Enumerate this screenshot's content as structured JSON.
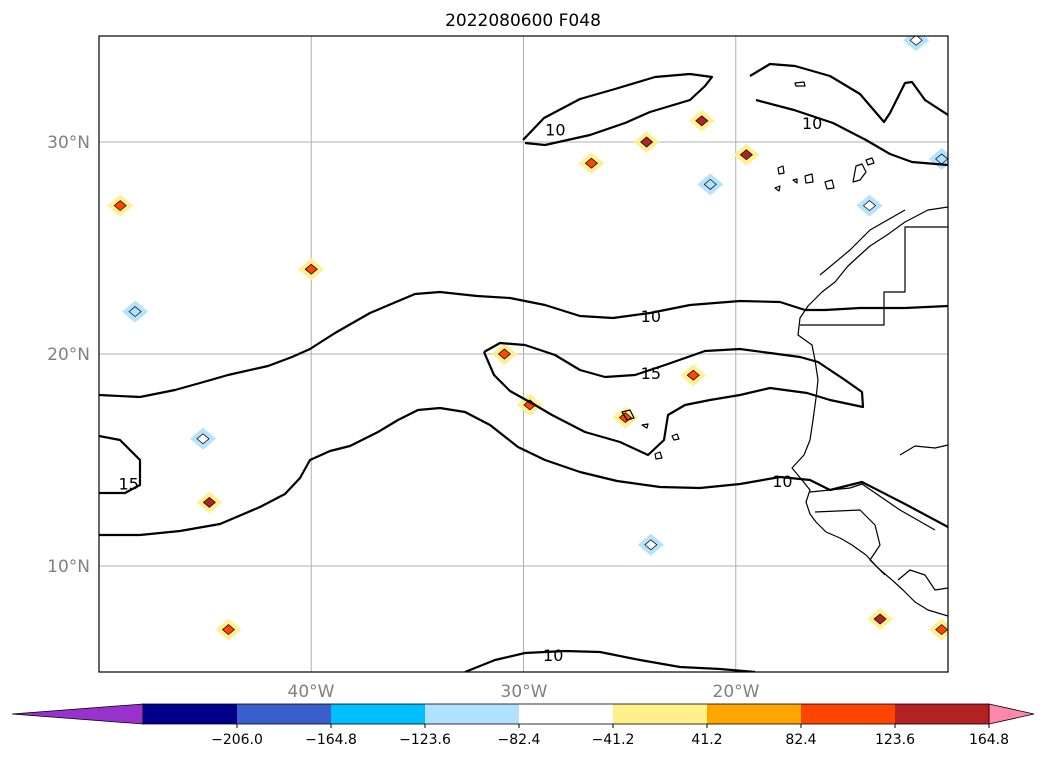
{
  "chart_data": {
    "type": "heatmap",
    "title": "2022080600 F048",
    "map": {
      "lon_range": [
        -50,
        -10
      ],
      "lat_range": [
        5,
        35
      ],
      "lon_ticks": [
        -40,
        -30,
        -20
      ],
      "lat_ticks": [
        10,
        20,
        30
      ],
      "lon_tick_labels": [
        "40°W",
        "30°W",
        "20°W"
      ],
      "lat_tick_labels": [
        "10°N",
        "20°N",
        "30°N"
      ],
      "grid": true,
      "coastlines": true,
      "country_borders": true
    },
    "colorbar": {
      "orientation": "horizontal",
      "extend": "both",
      "boundaries": [
        -247.2,
        -206.0,
        -164.8,
        -123.6,
        -82.4,
        -41.2,
        41.2,
        82.4,
        123.6,
        164.8,
        206.0,
        247.2
      ],
      "tick_values": [
        -206.0,
        -164.8,
        -123.6,
        -82.4,
        -41.2,
        41.2,
        82.4,
        123.6,
        164.8,
        206.0
      ],
      "tick_labels": [
        "−206.0",
        "−164.8",
        "−123.6",
        "−82.4",
        "−41.2",
        "41.2",
        "82.4",
        "123.6",
        "164.8",
        "206.0"
      ],
      "under_color": "#9932cc",
      "over_color": "#ff88aa",
      "colors": [
        "#00008b",
        "#3a5fcd",
        "#00bfff",
        "#b0e2ff",
        "#ffffff",
        "#fff08c",
        "#ffa500",
        "#ff4500",
        "#b22222"
      ]
    },
    "contour_labels": [
      {
        "text": "10",
        "lon": -28.5,
        "lat": 30.6
      },
      {
        "text": "10",
        "lon": -16.4,
        "lat": 30.9
      },
      {
        "text": "10",
        "lon": -24.0,
        "lat": 21.8
      },
      {
        "text": "15",
        "lon": -24.0,
        "lat": 19.1
      },
      {
        "text": "15",
        "lon": -48.6,
        "lat": 13.9
      },
      {
        "text": "10",
        "lon": -17.8,
        "lat": 14.0
      },
      {
        "text": "10",
        "lon": -28.6,
        "lat": 5.8
      }
    ],
    "anomaly_patches": [
      {
        "lon": -49.0,
        "lat": 27.0,
        "value": 82.4
      },
      {
        "lon": -40.0,
        "lat": 24.0,
        "value": 82.4
      },
      {
        "lon": -48.3,
        "lat": 22.0,
        "value": -123.6
      },
      {
        "lon": -45.1,
        "lat": 16.0,
        "value": -82.4
      },
      {
        "lon": -44.8,
        "lat": 13.0,
        "value": 123.6
      },
      {
        "lon": -43.9,
        "lat": 7.0,
        "value": 82.4
      },
      {
        "lon": -30.9,
        "lat": 20.0,
        "value": 82.4
      },
      {
        "lon": -29.7,
        "lat": 17.6,
        "value": 82.4
      },
      {
        "lon": -25.2,
        "lat": 17.0,
        "value": 82.4
      },
      {
        "lon": -22.0,
        "lat": 19.0,
        "value": 82.4
      },
      {
        "lon": -24.0,
        "lat": 11.0,
        "value": -82.4
      },
      {
        "lon": -26.8,
        "lat": 29.0,
        "value": 82.4
      },
      {
        "lon": -24.2,
        "lat": 30.0,
        "value": 164.8
      },
      {
        "lon": -21.6,
        "lat": 31.0,
        "value": 123.6
      },
      {
        "lon": -19.5,
        "lat": 29.4,
        "value": 123.6
      },
      {
        "lon": -21.2,
        "lat": 28.0,
        "value": -123.6
      },
      {
        "lon": -13.7,
        "lat": 27.0,
        "value": -82.4
      },
      {
        "lon": -10.3,
        "lat": 29.2,
        "value": -123.6
      },
      {
        "lon": -11.5,
        "lat": 34.8,
        "value": -82.4
      },
      {
        "lon": -13.2,
        "lat": 7.5,
        "value": 123.6
      },
      {
        "lon": -10.3,
        "lat": 7.0,
        "value": 82.4
      }
    ]
  }
}
